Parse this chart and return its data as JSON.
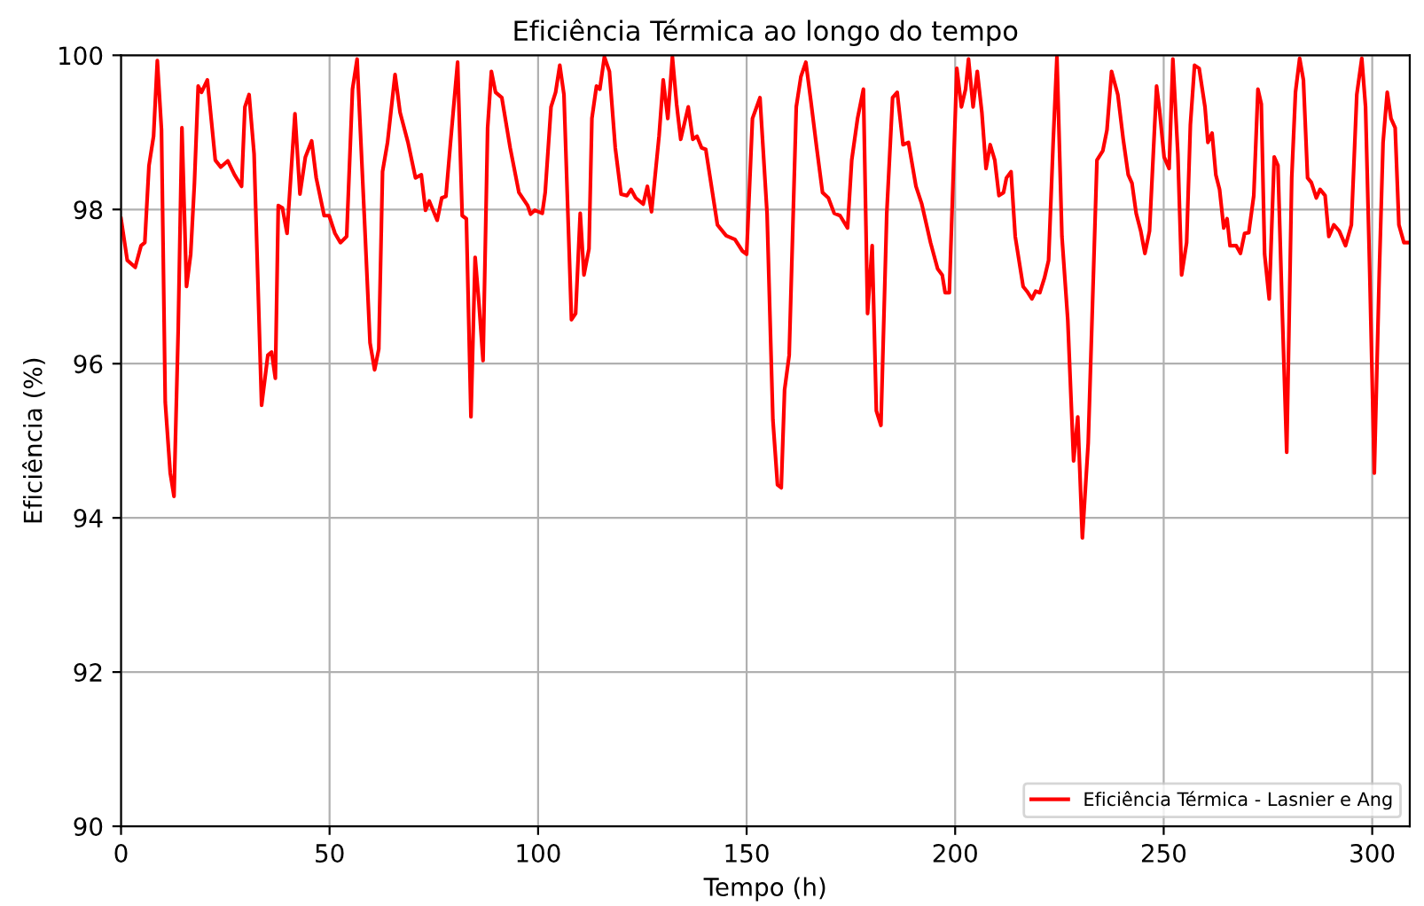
{
  "chart_data": {
    "type": "line",
    "title": "Eficiência Térmica ao longo do tempo",
    "xlabel": "Tempo (h)",
    "ylabel": "Eficiência (%)",
    "xlim": [
      0,
      309
    ],
    "xticks": [
      0,
      50,
      100,
      150,
      200,
      250,
      300
    ],
    "ylim": [
      90,
      100
    ],
    "yticks": [
      90,
      92,
      94,
      96,
      98,
      100
    ],
    "grid": true,
    "legend": "lower right",
    "series": [
      {
        "name": "Eficiência Térmica - Lasnier e Ang",
        "color": "#ff0000",
        "x": [
          0,
          1.5,
          3.4,
          4.8,
          5.7,
          6.7,
          7.8,
          8.7,
          9.7,
          10.6,
          11.8,
          12.7,
          13.7,
          14.6,
          15.7,
          16.7,
          17.6,
          18.5,
          19.3,
          20.7,
          22.6,
          23.9,
          25.6,
          27.2,
          28.9,
          29.7,
          30.7,
          31.9,
          33.7,
          35.2,
          36.1,
          37,
          37.7,
          38.7,
          39.8,
          41.7,
          42.9,
          44.2,
          45.7,
          46.8,
          48.7,
          49.9,
          51.3,
          52.6,
          54.1,
          55.5,
          56.6,
          58.3,
          59.7,
          60.8,
          61.8,
          62.7,
          63.9,
          65.7,
          66.9,
          68.8,
          70.6,
          72,
          73,
          73.9,
          75.8,
          76.9,
          77.9,
          79,
          80.7,
          81.8,
          82.8,
          83.9,
          84.9,
          85.8,
          86.8,
          87.9,
          88.8,
          89.8,
          91.3,
          93.3,
          95.4,
          97.5,
          98.2,
          99.2,
          101,
          101.7,
          103.1,
          104.2,
          105.2,
          106.2,
          108,
          109,
          110.1,
          111,
          112.2,
          112.9,
          114,
          114.8,
          115.9,
          117.1,
          118.5,
          119.9,
          121.3,
          122.3,
          123.4,
          125.2,
          126.2,
          127.2,
          129,
          130,
          131.1,
          132.2,
          133.2,
          134.2,
          136,
          137.1,
          138.1,
          139.2,
          140.2,
          143,
          145.1,
          147.2,
          149,
          150,
          151.4,
          153.2,
          154.9,
          156.3,
          157.4,
          158.3,
          159.1,
          160.2,
          161.9,
          163,
          164.2,
          165.4,
          166.8,
          168.2,
          169.6,
          171,
          172.4,
          174.2,
          175.2,
          176.6,
          178,
          179,
          180.1,
          181.1,
          182.2,
          183.6,
          185,
          186.1,
          187.5,
          188.8,
          190.6,
          192,
          194.1,
          195.8,
          196.9,
          197.6,
          198.6,
          200.4,
          201.5,
          202.5,
          203.2,
          204.3,
          205.3,
          206.4,
          207.4,
          208.4,
          209.5,
          210.5,
          211.6,
          212.3,
          213.4,
          214.4,
          216.3,
          217.2,
          218.4,
          219.3,
          220.3,
          221.4,
          222.4,
          223.5,
          224.4,
          225.6,
          227,
          228.4,
          229.4,
          230.5,
          231.9,
          234,
          235.4,
          236.4,
          237.5,
          239,
          240.3,
          241.5,
          242.4,
          243.4,
          244.5,
          245.5,
          246.6,
          248.3,
          249,
          250.1,
          251.3,
          252.2,
          253.4,
          254.3,
          255.5,
          256.4,
          257.4,
          258.5,
          259.9,
          260.6,
          261.6,
          262.5,
          263.4,
          264.4,
          265.2,
          265.9,
          267.4,
          268.4,
          269.4,
          270.4,
          271.6,
          272.6,
          273.4,
          274.2,
          275.3,
          276.5,
          277.4,
          278.4,
          279.5,
          280.7,
          281.6,
          282.6,
          283.5,
          284.5,
          285.4,
          286.6,
          287.5,
          288.7,
          289.6,
          290.8,
          292.1,
          293.6,
          295,
          296.3,
          297.5,
          298.4,
          299.4,
          300.5,
          301.7,
          302.6,
          303.6,
          304.5,
          305.5,
          306.4,
          307.6,
          309
        ],
        "values": [
          97.88,
          97.34,
          97.25,
          97.53,
          97.57,
          98.57,
          98.95,
          99.93,
          99.03,
          95.5,
          94.58,
          94.28,
          96.42,
          99.06,
          97.0,
          97.42,
          98.34,
          99.6,
          99.52,
          99.68,
          98.64,
          98.55,
          98.63,
          98.45,
          98.3,
          99.33,
          99.49,
          98.72,
          95.46,
          96.11,
          96.15,
          95.81,
          98.05,
          98.02,
          97.69,
          99.24,
          98.2,
          98.68,
          98.89,
          98.41,
          97.92,
          97.92,
          97.69,
          97.57,
          97.65,
          99.56,
          99.95,
          97.95,
          96.27,
          95.92,
          96.19,
          98.49,
          98.87,
          99.75,
          99.26,
          98.87,
          98.41,
          98.45,
          97.99,
          98.11,
          97.86,
          98.15,
          98.17,
          98.87,
          99.91,
          97.92,
          97.88,
          95.31,
          97.38,
          96.8,
          96.04,
          99.06,
          99.79,
          99.52,
          99.45,
          98.8,
          98.22,
          98.05,
          97.94,
          97.99,
          97.95,
          98.22,
          99.33,
          99.52,
          99.87,
          99.49,
          96.57,
          96.65,
          97.95,
          97.15,
          97.49,
          99.18,
          99.6,
          99.56,
          99.98,
          99.79,
          98.8,
          98.2,
          98.18,
          98.26,
          98.15,
          98.07,
          98.3,
          97.97,
          98.95,
          99.68,
          99.18,
          99.98,
          99.37,
          98.91,
          99.33,
          98.91,
          98.95,
          98.8,
          98.78,
          97.8,
          97.66,
          97.61,
          97.46,
          97.42,
          99.18,
          99.45,
          97.95,
          95.27,
          94.43,
          94.39,
          95.66,
          96.11,
          99.33,
          99.72,
          99.91,
          99.41,
          98.8,
          98.22,
          98.15,
          97.95,
          97.92,
          97.76,
          98.64,
          99.18,
          99.56,
          96.65,
          97.53,
          95.39,
          95.2,
          97.95,
          99.45,
          99.52,
          98.84,
          98.87,
          98.3,
          98.07,
          97.57,
          97.23,
          97.15,
          96.92,
          96.92,
          99.83,
          99.33,
          99.56,
          99.95,
          99.33,
          99.79,
          99.26,
          98.53,
          98.84,
          98.64,
          98.18,
          98.22,
          98.41,
          98.49,
          97.65,
          97.0,
          96.94,
          96.84,
          96.94,
          96.92,
          97.11,
          97.34,
          98.87,
          99.98,
          97.65,
          96.57,
          94.74,
          95.31,
          93.74,
          94.97,
          98.64,
          98.76,
          99.03,
          99.79,
          99.49,
          98.91,
          98.45,
          98.34,
          97.95,
          97.72,
          97.43,
          97.72,
          99.6,
          99.29,
          98.68,
          98.53,
          99.95,
          98.72,
          97.15,
          97.57,
          99.1,
          99.87,
          99.83,
          99.33,
          98.87,
          98.99,
          98.45,
          98.26,
          97.76,
          97.88,
          97.53,
          97.53,
          97.43,
          97.69,
          97.7,
          98.18,
          99.56,
          99.37,
          97.42,
          96.84,
          98.68,
          98.57,
          96.73,
          94.85,
          98.41,
          99.52,
          99.96,
          99.68,
          98.41,
          98.35,
          98.15,
          98.26,
          98.18,
          97.65,
          97.8,
          97.72,
          97.53,
          97.8,
          99.49,
          99.96,
          99.33,
          97.19,
          94.58,
          97.19,
          98.87,
          99.52,
          99.18,
          99.06,
          97.8,
          97.57,
          97.57
        ]
      }
    ]
  }
}
